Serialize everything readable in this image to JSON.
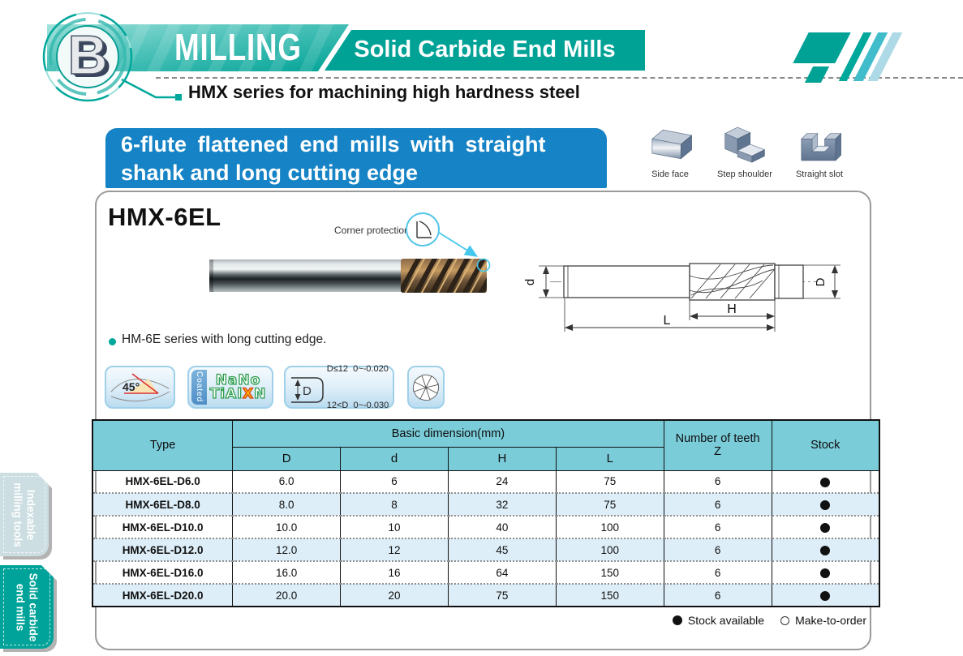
{
  "header": {
    "section_letter": "B",
    "section_title": "MILLING",
    "page_title": "Solid Carbide End Mills",
    "series_note": "HMX series for machining high hardness steel"
  },
  "banner": {
    "line1": "6-flute flattened end mills with straight",
    "line2": "shank and long cutting edge"
  },
  "applications": [
    {
      "label": "Side face"
    },
    {
      "label": "Step shoulder"
    },
    {
      "label": "Straight slot"
    }
  ],
  "product": {
    "model": "HMX-6EL",
    "callout": "Corner protection",
    "note": "HM-6E series with long cutting edge.",
    "dims": {
      "shank_dia": "d",
      "cut_dia": "D",
      "flute_length": "H",
      "overall_length": "L"
    }
  },
  "features": {
    "helix_angle": "45°",
    "coated": "Coated",
    "coating_line1": "NaNo",
    "coating_l2a": "TiAl",
    "coating_l2x": "X",
    "coating_l2c": "N",
    "tol_symbol": "D",
    "tol_line1": "D≤12  0~-0.020",
    "tol_line2": "12<D  0~-0.030"
  },
  "table": {
    "col_type": "Type",
    "col_basic": "Basic dimension(mm)",
    "sub_cols": [
      "D",
      "d",
      "H",
      "L"
    ],
    "col_teeth_line1": "Number of teeth",
    "col_teeth_line2": "Z",
    "col_stock": "Stock",
    "rows": [
      {
        "type": "HMX-6EL-D6.0",
        "D": "6.0",
        "d": "6",
        "H": "24",
        "L": "75",
        "z": "6",
        "stock": "available"
      },
      {
        "type": "HMX-6EL-D8.0",
        "D": "8.0",
        "d": "8",
        "H": "32",
        "L": "75",
        "z": "6",
        "stock": "available"
      },
      {
        "type": "HMX-6EL-D10.0",
        "D": "10.0",
        "d": "10",
        "H": "40",
        "L": "100",
        "z": "6",
        "stock": "available"
      },
      {
        "type": "HMX-6EL-D12.0",
        "D": "12.0",
        "d": "12",
        "H": "45",
        "L": "100",
        "z": "6",
        "stock": "available"
      },
      {
        "type": "HMX-6EL-D16.0",
        "D": "16.0",
        "d": "16",
        "H": "64",
        "L": "150",
        "z": "6",
        "stock": "available"
      },
      {
        "type": "HMX-6EL-D20.0",
        "D": "20.0",
        "d": "20",
        "H": "75",
        "L": "150",
        "z": "6",
        "stock": "available"
      }
    ]
  },
  "legend": {
    "stock_available": "Stock available",
    "make_to_order": "Make-to-order"
  },
  "sidebar": {
    "tabs": [
      {
        "line1": "Indexable",
        "line2": "milling tools",
        "active": false
      },
      {
        "line1": "Solid carbide",
        "line2": "end mills",
        "active": true
      }
    ]
  },
  "colors": {
    "teal": "#00a79b",
    "banner_blue": "#1583c5",
    "table_header_bg": "#7bccd9",
    "row_alt_bg": "#ddeef8",
    "accent_cyan": "#45c8ec"
  }
}
